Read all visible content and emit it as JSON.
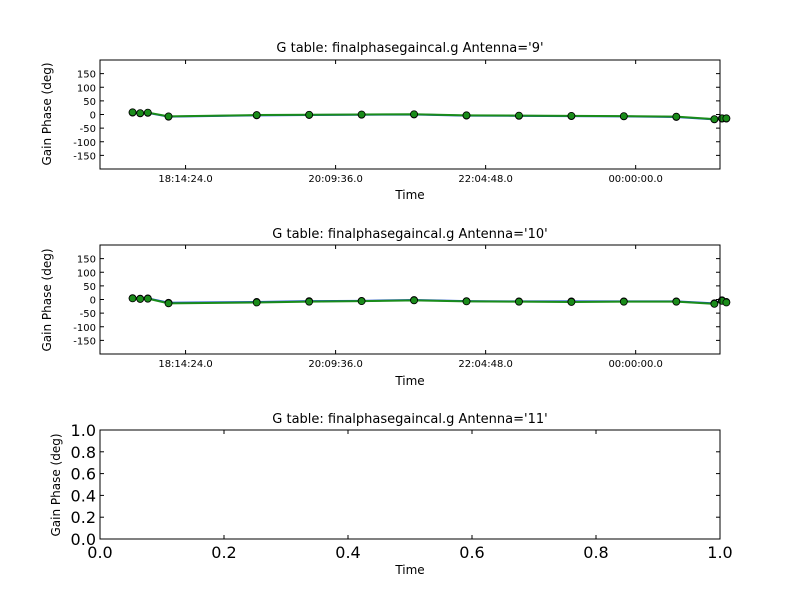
{
  "chart_data": [
    {
      "type": "line",
      "title": "G table: finalphasegaincal.g      Antenna='9'",
      "xlabel": "Time",
      "ylabel": "Gain Phase (deg)",
      "ylim": [
        -200,
        200
      ],
      "yticks": [
        150,
        100,
        50,
        0,
        -50,
        -100,
        -150
      ],
      "xlim": [
        "17:08:42",
        "01:04:45"
      ],
      "xticks": [
        "18:14:24.0",
        "20:09:36.0",
        "22:04:48.0",
        "00:00:00.0"
      ],
      "x": [
        "17:33:43",
        "17:39:34",
        "17:45:25",
        "18:01:19",
        "19:09:01",
        "19:49:17",
        "20:29:34",
        "21:09:50",
        "21:50:06",
        "22:30:23",
        "23:10:39",
        "23:50:55",
        "00:31:12",
        "01:00:26",
        "01:06:17",
        "01:09:38"
      ],
      "series": [
        {
          "values": [
            7,
            4,
            6,
            -8,
            -3,
            -2,
            -1,
            0,
            -4,
            -5,
            -6,
            -7,
            -9,
            -18,
            -15,
            -15
          ],
          "color": "#1f4fd0"
        },
        {
          "values": [
            8,
            5,
            7,
            -7,
            -2,
            -1,
            0,
            1,
            -3,
            -4,
            -5,
            -6,
            -8,
            -17,
            -14,
            -14
          ],
          "color": "#1a8c1a"
        }
      ]
    },
    {
      "type": "line",
      "title": "G table: finalphasegaincal.g      Antenna='10'",
      "xlabel": "Time",
      "ylabel": "Gain Phase (deg)",
      "ylim": [
        -200,
        200
      ],
      "yticks": [
        150,
        100,
        50,
        0,
        -50,
        -100,
        -150
      ],
      "xlim": [
        "17:08:42",
        "01:04:45"
      ],
      "xticks": [
        "18:14:24.0",
        "20:09:36.0",
        "22:04:48.0",
        "00:00:00.0"
      ],
      "x": [
        "17:33:43",
        "17:39:34",
        "17:45:25",
        "18:01:19",
        "19:09:01",
        "19:49:17",
        "20:29:34",
        "21:09:50",
        "21:50:06",
        "22:30:23",
        "23:10:39",
        "23:50:55",
        "00:31:12",
        "01:00:26",
        "01:06:17",
        "01:09:38"
      ],
      "series": [
        {
          "values": [
            5,
            3,
            4,
            -12,
            -9,
            -6,
            -5,
            -2,
            -6,
            -7,
            -7,
            -7,
            -7,
            -14,
            -3,
            -9
          ],
          "color": "#1f4fd0"
        },
        {
          "values": [
            4,
            2,
            3,
            -14,
            -11,
            -8,
            -6,
            -3,
            -7,
            -8,
            -9,
            -8,
            -8,
            -16,
            -5,
            -11
          ],
          "color": "#1a8c1a"
        }
      ]
    },
    {
      "type": "line",
      "title": "G table: finalphasegaincal.g      Antenna='11'",
      "xlabel": "Time",
      "ylabel": "Gain Phase (deg)",
      "xlim": [
        0.0,
        1.0
      ],
      "ylim": [
        0.0,
        1.0
      ],
      "xticks": [
        "0.0",
        "0.2",
        "0.4",
        "0.6",
        "0.8",
        "1.0"
      ],
      "yticks": [
        "0.0",
        "0.2",
        "0.4",
        "0.6",
        "0.8",
        "1.0"
      ],
      "series": []
    }
  ]
}
